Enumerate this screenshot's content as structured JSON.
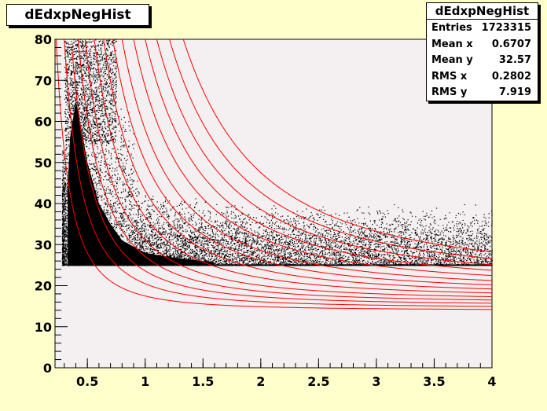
{
  "title": "dEdxpNegHist",
  "stats": {
    "name": "dEdxpNegHist",
    "rows": [
      {
        "label": "Entries",
        "value": "1723315"
      },
      {
        "label": "Mean x",
        "value": "0.6707"
      },
      {
        "label": "Mean y",
        "value": "32.57"
      },
      {
        "label": "RMS x",
        "value": "0.2802"
      },
      {
        "label": "RMS y",
        "value": "7.919"
      }
    ]
  },
  "colors": {
    "canvas": "#ffffcc",
    "frame": "#f4eff0",
    "points": "#000000",
    "curves": "#ff0000"
  },
  "chart_data": {
    "type": "scatter",
    "title": "dEdxpNegHist",
    "xlabel": "",
    "ylabel": "",
    "xlim": [
      0.22,
      4.0
    ],
    "ylim": [
      0,
      80
    ],
    "x_ticks": [
      "0.5",
      "1",
      "1.5",
      "2",
      "2.5",
      "3",
      "3.5",
      "4"
    ],
    "y_ticks": [
      "0",
      "10",
      "20",
      "30",
      "40",
      "50",
      "60",
      "70",
      "80"
    ],
    "x_tick_values": [
      0.5,
      1,
      1.5,
      2,
      2.5,
      3,
      3.5,
      4
    ],
    "y_tick_values": [
      0,
      10,
      20,
      30,
      40,
      50,
      60,
      70,
      80
    ],
    "density_floor_y": 25,
    "dense_band": [
      {
        "x": 0.3,
        "y": 26
      },
      {
        "x": 0.35,
        "y": 56
      },
      {
        "x": 0.4,
        "y": 65
      },
      {
        "x": 0.45,
        "y": 58
      },
      {
        "x": 0.5,
        "y": 50
      },
      {
        "x": 0.6,
        "y": 40
      },
      {
        "x": 0.7,
        "y": 35
      },
      {
        "x": 0.8,
        "y": 31
      },
      {
        "x": 1.0,
        "y": 28
      },
      {
        "x": 1.2,
        "y": 27
      },
      {
        "x": 1.5,
        "y": 26
      },
      {
        "x": 2.0,
        "y": 25
      }
    ],
    "curves": [
      {
        "asymptote": 14.0,
        "x_at_80": 0.23
      },
      {
        "asymptote": 14.6,
        "x_at_80": 0.3
      },
      {
        "asymptote": 15.2,
        "x_at_80": 0.36
      },
      {
        "asymptote": 15.8,
        "x_at_80": 0.42
      },
      {
        "asymptote": 16.4,
        "x_at_80": 0.48
      },
      {
        "asymptote": 17.0,
        "x_at_80": 0.56
      },
      {
        "asymptote": 17.6,
        "x_at_80": 0.64
      },
      {
        "asymptote": 18.2,
        "x_at_80": 0.72
      },
      {
        "asymptote": 18.8,
        "x_at_80": 0.8
      },
      {
        "asymptote": 19.4,
        "x_at_80": 0.9
      },
      {
        "asymptote": 20.0,
        "x_at_80": 1.0
      },
      {
        "asymptote": 20.6,
        "x_at_80": 1.1
      },
      {
        "asymptote": 21.2,
        "x_at_80": 1.21
      },
      {
        "asymptote": 21.8,
        "x_at_80": 1.33
      }
    ]
  }
}
